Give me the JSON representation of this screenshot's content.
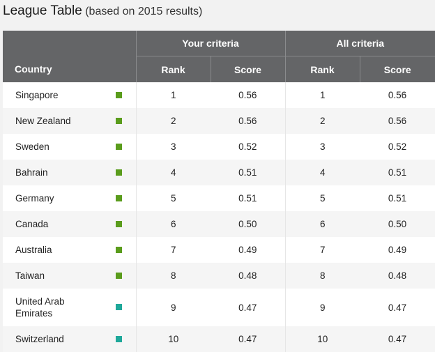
{
  "header": {
    "title": "League Table",
    "subtitle": "(based on 2015 results)"
  },
  "table": {
    "group_your": "Your criteria",
    "group_all": "All criteria",
    "col_country": "Country",
    "col_rank": "Rank",
    "col_score": "Score",
    "colors": {
      "green": "#5a9c1c",
      "teal": "#1fa89a",
      "header_bg": "#646567"
    },
    "rows": [
      {
        "country": "Singapore",
        "color": "green",
        "rank1": "1",
        "score1": "0.56",
        "rank2": "1",
        "score2": "0.56"
      },
      {
        "country": "New Zealand",
        "color": "green",
        "rank1": "2",
        "score1": "0.56",
        "rank2": "2",
        "score2": "0.56"
      },
      {
        "country": "Sweden",
        "color": "green",
        "rank1": "3",
        "score1": "0.52",
        "rank2": "3",
        "score2": "0.52"
      },
      {
        "country": "Bahrain",
        "color": "green",
        "rank1": "4",
        "score1": "0.51",
        "rank2": "4",
        "score2": "0.51"
      },
      {
        "country": "Germany",
        "color": "green",
        "rank1": "5",
        "score1": "0.51",
        "rank2": "5",
        "score2": "0.51"
      },
      {
        "country": "Canada",
        "color": "green",
        "rank1": "6",
        "score1": "0.50",
        "rank2": "6",
        "score2": "0.50"
      },
      {
        "country": "Australia",
        "color": "green",
        "rank1": "7",
        "score1": "0.49",
        "rank2": "7",
        "score2": "0.49"
      },
      {
        "country": "Taiwan",
        "color": "green",
        "rank1": "8",
        "score1": "0.48",
        "rank2": "8",
        "score2": "0.48"
      },
      {
        "country": "United Arab Emirates",
        "color": "teal",
        "rank1": "9",
        "score1": "0.47",
        "rank2": "9",
        "score2": "0.47"
      },
      {
        "country": "Switzerland",
        "color": "teal",
        "rank1": "10",
        "score1": "0.47",
        "rank2": "10",
        "score2": "0.47"
      }
    ]
  }
}
